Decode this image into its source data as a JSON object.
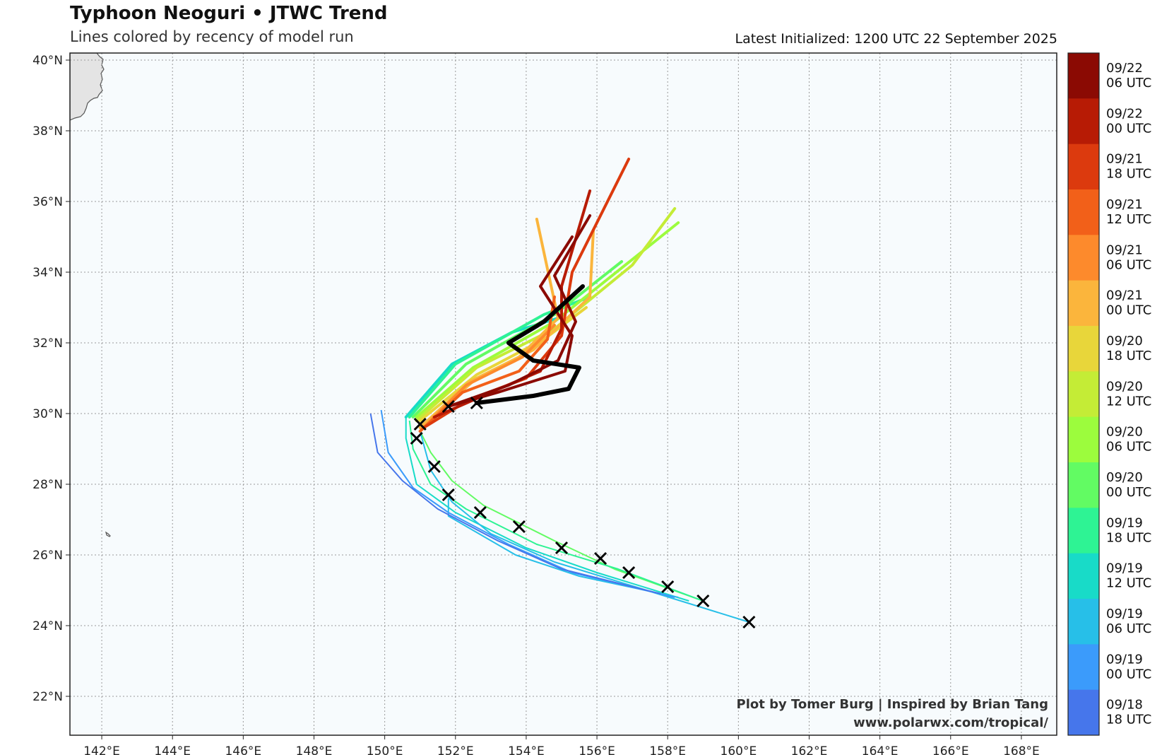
{
  "header": {
    "title": "Typhoon Neoguri • JTWC Trend",
    "subtitle": "Lines colored by recency of model run",
    "latest_initialized": "Latest Initialized: 1200 UTC 22 September 2025"
  },
  "credits": {
    "line1": "Plot by Tomer Burg | Inspired by Brian Tang",
    "line2": "www.polarwx.com/tropical/"
  },
  "map": {
    "lon_range": [
      141.1,
      169.0
    ],
    "lat_range": [
      20.9,
      40.2
    ],
    "lon_ticks": [
      {
        "value": 142,
        "label": "142°E"
      },
      {
        "value": 144,
        "label": "144°E"
      },
      {
        "value": 146,
        "label": "146°E"
      },
      {
        "value": 148,
        "label": "148°E"
      },
      {
        "value": 150,
        "label": "150°E"
      },
      {
        "value": 152,
        "label": "152°E"
      },
      {
        "value": 154,
        "label": "154°E"
      },
      {
        "value": 156,
        "label": "156°E"
      },
      {
        "value": 158,
        "label": "158°E"
      },
      {
        "value": 160,
        "label": "160°E"
      },
      {
        "value": 162,
        "label": "162°E"
      },
      {
        "value": 164,
        "label": "164°E"
      },
      {
        "value": 166,
        "label": "166°E"
      },
      {
        "value": 168,
        "label": "168°E"
      }
    ],
    "lat_ticks": [
      {
        "value": 22,
        "label": "22°N"
      },
      {
        "value": 24,
        "label": "24°N"
      },
      {
        "value": 26,
        "label": "26°N"
      },
      {
        "value": 28,
        "label": "28°N"
      },
      {
        "value": 30,
        "label": "30°N"
      },
      {
        "value": 32,
        "label": "32°N"
      },
      {
        "value": 34,
        "label": "34°N"
      },
      {
        "value": 36,
        "label": "36°N"
      },
      {
        "value": 38,
        "label": "38°N"
      },
      {
        "value": 40,
        "label": "40°N"
      }
    ],
    "gridlines": true,
    "colors": {
      "ocean": "#f7fbfd",
      "land": "#e4e4e4",
      "coast": "#555555",
      "grid": "#9a9a9a"
    }
  },
  "colorbar": [
    {
      "line1": "09/22",
      "line2": "06 UTC",
      "color": "#8b0a03"
    },
    {
      "line1": "09/22",
      "line2": "00 UTC",
      "color": "#b71b05"
    },
    {
      "line1": "09/21",
      "line2": "18 UTC",
      "color": "#dc3a0e"
    },
    {
      "line1": "09/21",
      "line2": "12 UTC",
      "color": "#f26019"
    },
    {
      "line1": "09/21",
      "line2": "06 UTC",
      "color": "#fd8a2c"
    },
    {
      "line1": "09/21",
      "line2": "00 UTC",
      "color": "#fbb53c"
    },
    {
      "line1": "09/20",
      "line2": "18 UTC",
      "color": "#e8d63a"
    },
    {
      "line1": "09/20",
      "line2": "12 UTC",
      "color": "#c4ec36"
    },
    {
      "line1": "09/20",
      "line2": "06 UTC",
      "color": "#9cfc3d"
    },
    {
      "line1": "09/20",
      "line2": "00 UTC",
      "color": "#62fb63"
    },
    {
      "line1": "09/19",
      "line2": "18 UTC",
      "color": "#2ef394"
    },
    {
      "line1": "09/19",
      "line2": "12 UTC",
      "color": "#18dbc8"
    },
    {
      "line1": "09/19",
      "line2": "06 UTC",
      "color": "#27bfe8"
    },
    {
      "line1": "09/19",
      "line2": "00 UTC",
      "color": "#3b9bfb"
    },
    {
      "line1": "09/18",
      "line2": "18 UTC",
      "color": "#4676eb"
    }
  ],
  "chart_data": {
    "type": "line",
    "observed_track": [
      [
        160.3,
        24.1
      ],
      [
        159.0,
        24.7
      ],
      [
        158.0,
        25.1
      ],
      [
        156.9,
        25.5
      ],
      [
        156.1,
        25.9
      ],
      [
        155.0,
        26.2
      ],
      [
        153.8,
        26.8
      ],
      [
        152.7,
        27.2
      ],
      [
        151.8,
        27.7
      ],
      [
        151.4,
        28.5
      ],
      [
        150.9,
        29.3
      ],
      [
        151.0,
        29.7
      ],
      [
        151.8,
        30.2
      ],
      [
        152.6,
        30.3
      ]
    ],
    "latest_forecast": {
      "color": "#000000",
      "points": [
        [
          152.6,
          30.3
        ],
        [
          154.2,
          30.5
        ],
        [
          155.2,
          30.7
        ],
        [
          155.5,
          31.3
        ],
        [
          154.2,
          31.5
        ],
        [
          153.5,
          32.0
        ],
        [
          154.5,
          32.6
        ],
        [
          155.6,
          33.6
        ]
      ]
    },
    "forecasts": [
      {
        "color": "#8b0a03",
        "points": [
          [
            151.8,
            30.2
          ],
          [
            153.2,
            30.6
          ],
          [
            155.1,
            31.2
          ],
          [
            155.3,
            32.2
          ],
          [
            154.4,
            33.6
          ],
          [
            155.3,
            35.0
          ]
        ]
      },
      {
        "color": "#8b0a03",
        "points": [
          [
            151.8,
            30.2
          ],
          [
            153.5,
            30.8
          ],
          [
            154.9,
            31.5
          ],
          [
            155.4,
            32.6
          ],
          [
            154.8,
            33.9
          ],
          [
            155.8,
            35.6
          ]
        ]
      },
      {
        "color": "#b71b05",
        "points": [
          [
            151.4,
            29.9
          ],
          [
            153.0,
            30.6
          ],
          [
            154.4,
            31.2
          ],
          [
            155.0,
            32.4
          ],
          [
            155.0,
            33.6
          ],
          [
            155.8,
            36.3
          ]
        ]
      },
      {
        "color": "#dc3a0e",
        "points": [
          [
            151.1,
            29.6
          ],
          [
            152.4,
            30.4
          ],
          [
            154.0,
            31.0
          ],
          [
            155.0,
            32.2
          ],
          [
            155.3,
            34.0
          ],
          [
            156.9,
            37.2
          ]
        ]
      },
      {
        "color": "#f26019",
        "points": [
          [
            151.0,
            29.5
          ],
          [
            152.2,
            30.6
          ],
          [
            153.8,
            31.2
          ],
          [
            154.6,
            32.1
          ],
          [
            154.8,
            33.3
          ]
        ]
      },
      {
        "color": "#fd8a2c",
        "points": [
          [
            151.0,
            29.5
          ],
          [
            152.3,
            30.8
          ],
          [
            153.9,
            31.6
          ],
          [
            154.8,
            32.5
          ]
        ]
      },
      {
        "color": "#fbb53c",
        "points": [
          [
            151.0,
            29.6
          ],
          [
            152.4,
            30.9
          ],
          [
            153.7,
            31.5
          ],
          [
            154.9,
            32.7
          ],
          [
            154.3,
            35.5
          ]
        ]
      },
      {
        "color": "#fbb53c",
        "points": [
          [
            151.1,
            29.7
          ],
          [
            152.6,
            31.0
          ],
          [
            154.2,
            31.8
          ],
          [
            155.8,
            33.3
          ],
          [
            155.9,
            35.2
          ]
        ]
      },
      {
        "color": "#e8d63a",
        "points": [
          [
            151.0,
            29.8
          ],
          [
            152.6,
            31.1
          ],
          [
            154.5,
            32.1
          ],
          [
            155.7,
            33.0
          ]
        ]
      },
      {
        "color": "#c4ec36",
        "points": [
          [
            150.9,
            29.8
          ],
          [
            152.6,
            31.3
          ],
          [
            154.8,
            32.4
          ],
          [
            157.0,
            34.2
          ],
          [
            158.2,
            35.8
          ]
        ]
      },
      {
        "color": "#9cfc3d",
        "points": [
          [
            150.9,
            29.9
          ],
          [
            152.5,
            31.3
          ],
          [
            154.8,
            32.6
          ],
          [
            158.3,
            35.4
          ]
        ]
      },
      {
        "color": "#62fb63",
        "points": [
          [
            150.8,
            29.9
          ],
          [
            152.3,
            31.4
          ],
          [
            154.8,
            32.8
          ],
          [
            156.7,
            34.3
          ]
        ]
      },
      {
        "color": "#2ef394",
        "points": [
          [
            150.7,
            29.9
          ],
          [
            152.0,
            31.4
          ],
          [
            154.5,
            32.8
          ],
          [
            155.8,
            33.3
          ]
        ]
      },
      {
        "color": "#18dbc8",
        "points": [
          [
            150.6,
            29.9
          ],
          [
            151.9,
            31.4
          ],
          [
            153.6,
            32.3
          ],
          [
            154.9,
            32.7
          ]
        ]
      }
    ],
    "past_tracks": [
      {
        "color": "#62fb63",
        "points": [
          [
            159.0,
            24.7
          ],
          [
            156.5,
            25.6
          ],
          [
            154.8,
            26.4
          ],
          [
            152.8,
            27.4
          ],
          [
            151.9,
            28.1
          ],
          [
            151.3,
            28.9
          ],
          [
            151.0,
            29.5
          ]
        ]
      },
      {
        "color": "#2ef394",
        "points": [
          [
            159.0,
            24.7
          ],
          [
            156.6,
            25.6
          ],
          [
            154.3,
            26.3
          ],
          [
            152.3,
            27.3
          ],
          [
            151.3,
            28.0
          ],
          [
            150.8,
            29.0
          ],
          [
            150.7,
            29.8
          ]
        ]
      },
      {
        "color": "#18dbc8",
        "points": [
          [
            158.6,
            24.7
          ],
          [
            156.0,
            25.5
          ],
          [
            154.0,
            26.2
          ],
          [
            152.0,
            27.2
          ],
          [
            150.9,
            28.0
          ],
          [
            150.6,
            29.3
          ],
          [
            150.6,
            29.9
          ]
        ]
      },
      {
        "color": "#27bfe8",
        "points": [
          [
            160.3,
            24.1
          ],
          [
            157.4,
            25.0
          ],
          [
            154.8,
            25.8
          ],
          [
            153.0,
            26.6
          ],
          [
            151.9,
            27.5
          ],
          [
            151.3,
            28.4
          ],
          [
            151.0,
            29.5
          ]
        ]
      },
      {
        "color": "#27bfe8",
        "points": [
          [
            158.3,
            24.8
          ],
          [
            155.5,
            25.4
          ],
          [
            153.7,
            26.0
          ],
          [
            151.8,
            27.1
          ],
          [
            151.8,
            27.6
          ]
        ]
      },
      {
        "color": "#3b9bfb",
        "points": [
          [
            158.2,
            24.8
          ],
          [
            155.3,
            25.5
          ],
          [
            153.5,
            26.3
          ],
          [
            151.8,
            27.2
          ],
          [
            150.8,
            27.9
          ],
          [
            150.1,
            28.9
          ],
          [
            149.9,
            30.1
          ]
        ]
      },
      {
        "color": "#4676eb",
        "points": [
          [
            157.8,
            24.9
          ],
          [
            155.0,
            25.6
          ],
          [
            153.2,
            26.4
          ],
          [
            151.5,
            27.3
          ],
          [
            150.5,
            28.1
          ],
          [
            149.8,
            28.9
          ],
          [
            149.6,
            30.0
          ]
        ]
      }
    ]
  }
}
